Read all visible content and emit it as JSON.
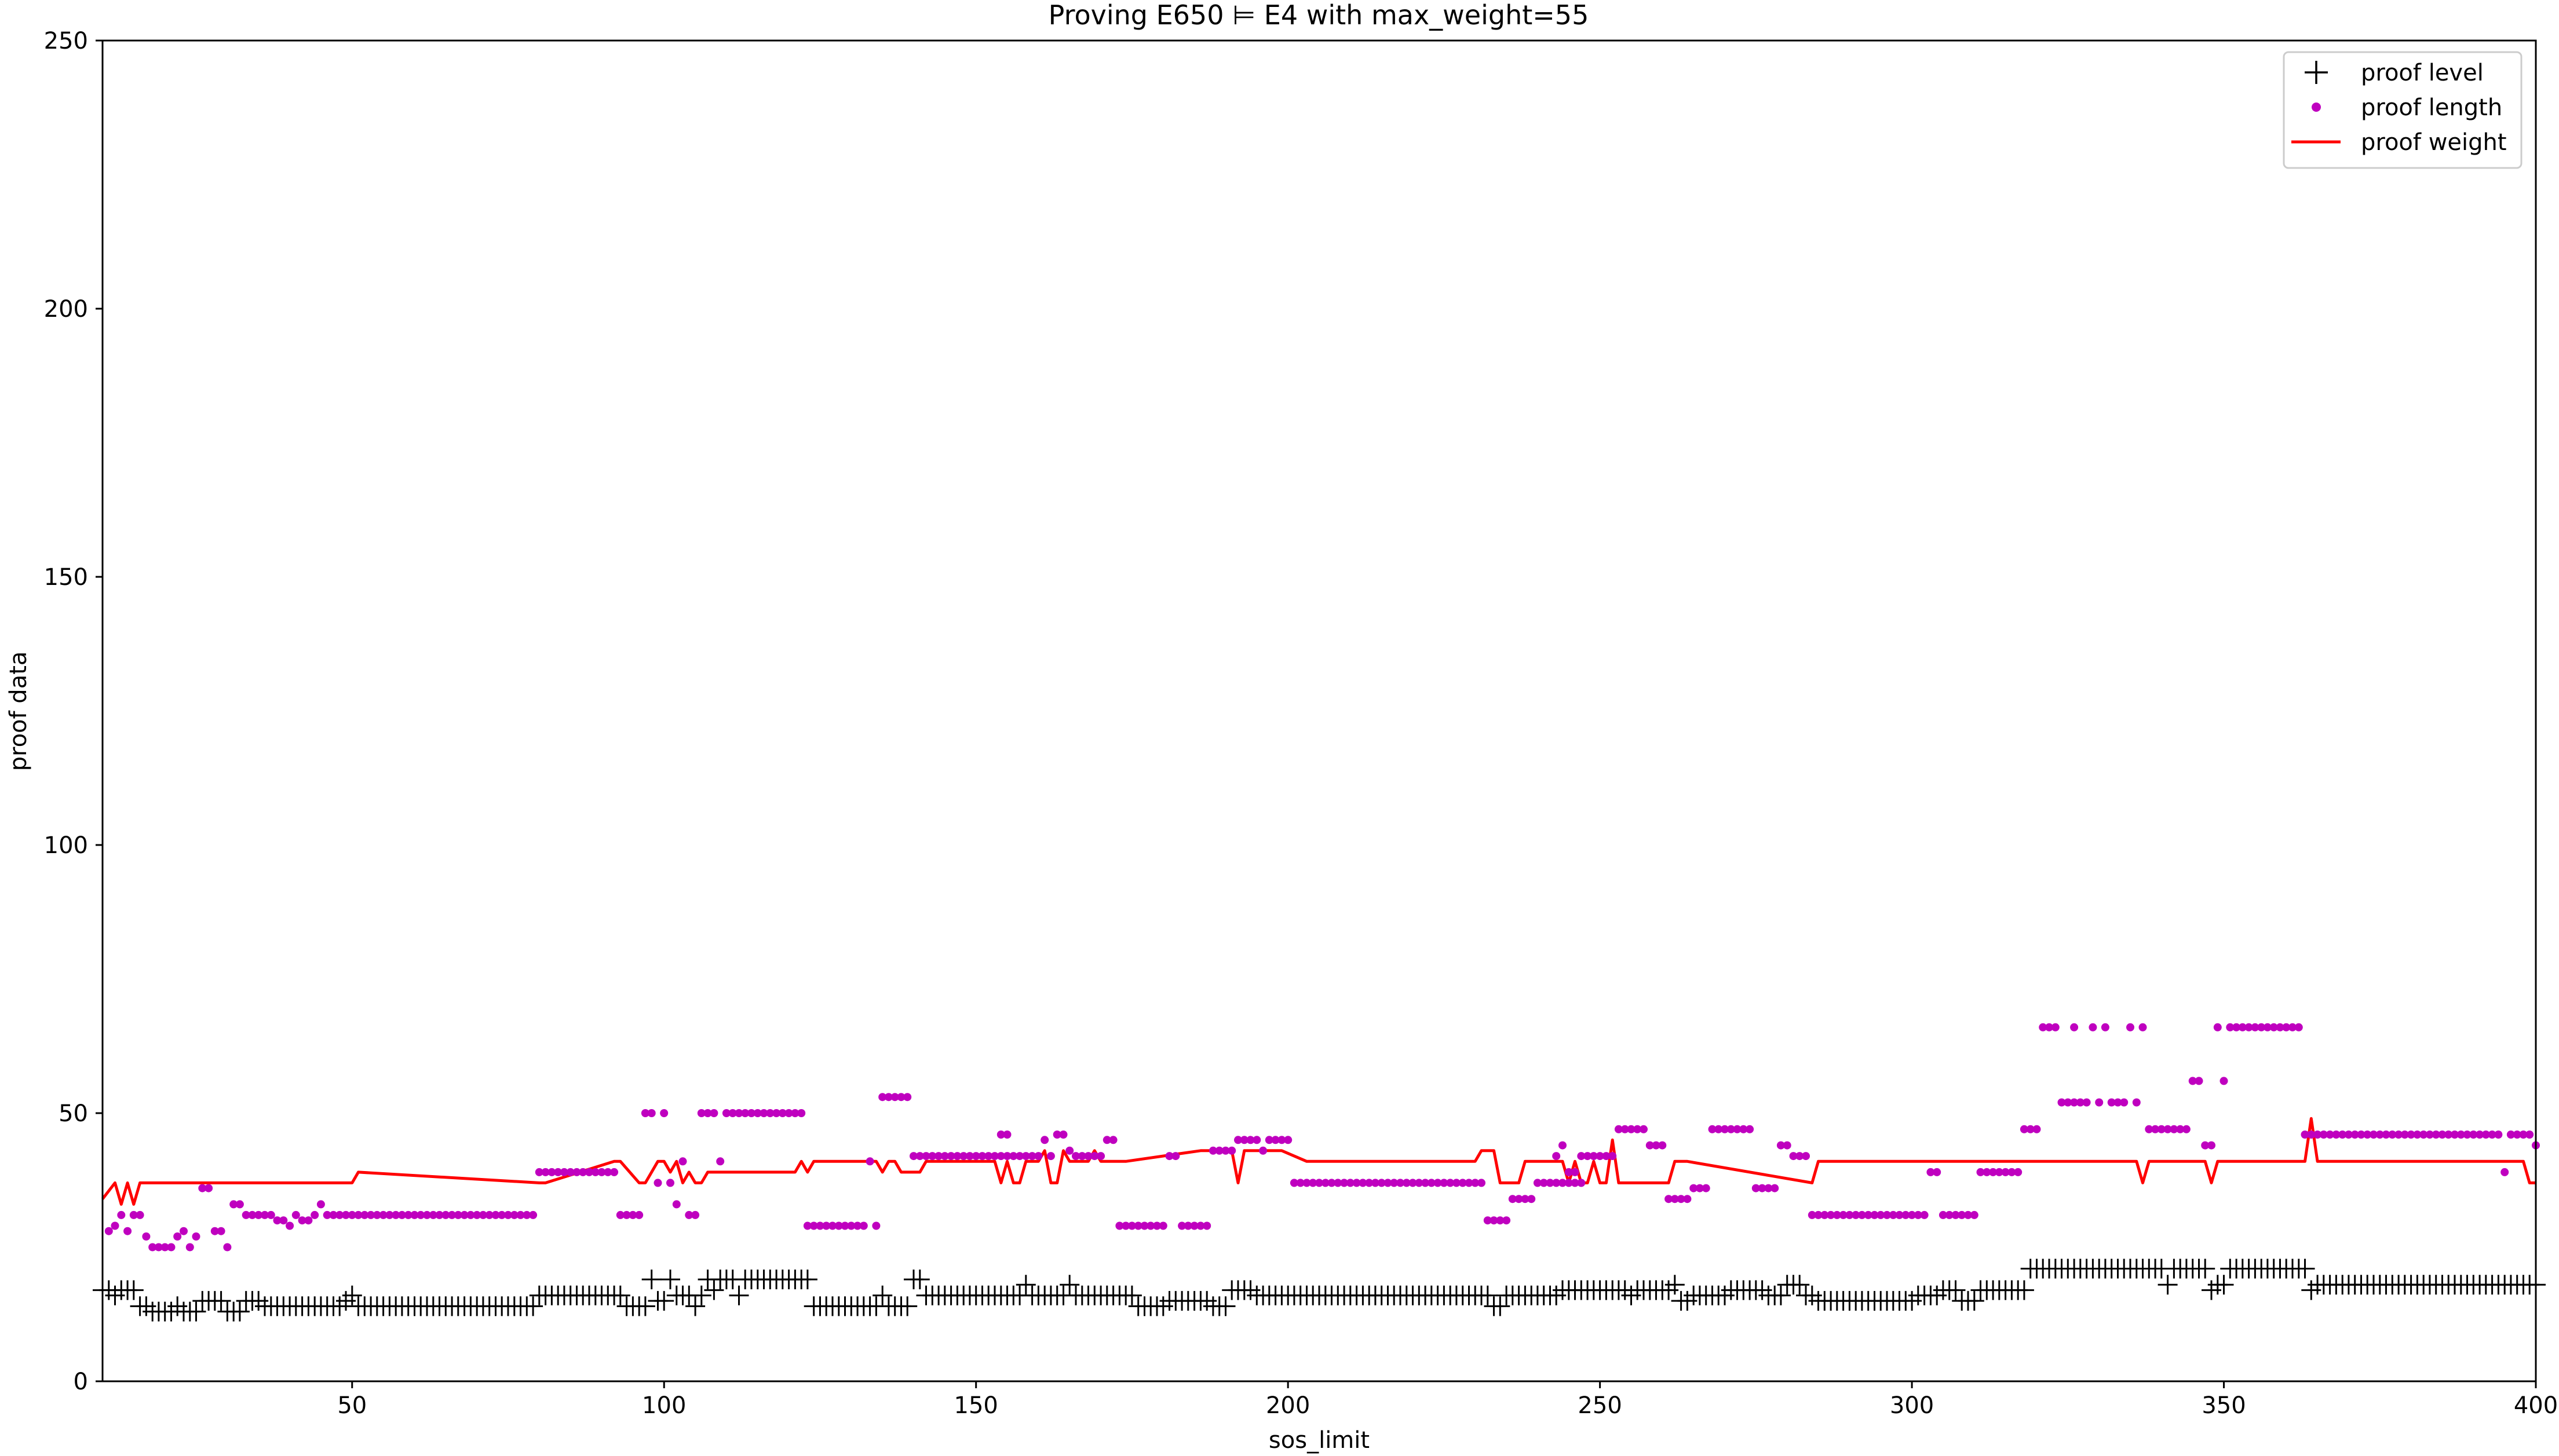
{
  "chart_data": {
    "type": "scatter",
    "title": "Proving E650 ⊨ E4 with max_weight=55",
    "xlabel": "sos_limit",
    "ylabel": "proof data",
    "xlim": [
      10,
      400
    ],
    "ylim": [
      0,
      250
    ],
    "x_ticks": [
      50,
      100,
      150,
      200,
      250,
      300,
      350,
      400
    ],
    "y_ticks": [
      0,
      50,
      100,
      150,
      200,
      250
    ],
    "grid": false,
    "legend": {
      "placement": "top-right",
      "entries": [
        "proof level",
        "proof length",
        "proof weight"
      ]
    },
    "colors": {
      "proof_level": "#000000",
      "proof_length": "#bf00bf",
      "proof_weight": "#ff0000"
    },
    "series": [
      {
        "name": "proof level",
        "marker": "plus",
        "segments": [
          [
            10,
            11,
            17
          ],
          [
            12,
            12,
            16
          ],
          [
            13,
            15,
            17
          ],
          [
            16,
            17,
            14
          ],
          [
            18,
            21,
            13
          ],
          [
            22,
            22,
            14
          ],
          [
            23,
            25,
            13
          ],
          [
            26,
            29,
            15
          ],
          [
            30,
            32,
            13
          ],
          [
            33,
            35,
            15
          ],
          [
            36,
            48,
            14
          ],
          [
            49,
            49,
            15
          ],
          [
            50,
            50,
            16
          ],
          [
            51,
            79,
            14
          ],
          [
            80,
            93,
            16
          ],
          [
            94,
            97,
            14
          ],
          [
            98,
            98,
            19
          ],
          [
            99,
            100,
            15
          ],
          [
            101,
            101,
            19
          ],
          [
            102,
            104,
            16
          ],
          [
            105,
            105,
            14
          ],
          [
            106,
            106,
            16
          ],
          [
            107,
            107,
            19
          ],
          [
            108,
            108,
            17
          ],
          [
            109,
            111,
            19
          ],
          [
            112,
            112,
            16
          ],
          [
            113,
            123,
            19
          ],
          [
            124,
            134,
            14
          ],
          [
            135,
            135,
            16
          ],
          [
            136,
            139,
            14
          ],
          [
            140,
            141,
            19
          ],
          [
            142,
            157,
            16
          ],
          [
            158,
            158,
            18
          ],
          [
            159,
            164,
            16
          ],
          [
            165,
            165,
            18
          ],
          [
            166,
            175,
            16
          ],
          [
            176,
            180,
            14
          ],
          [
            181,
            187,
            15
          ],
          [
            188,
            190,
            14
          ],
          [
            191,
            194,
            17
          ],
          [
            195,
            232,
            16
          ],
          [
            233,
            234,
            14
          ],
          [
            235,
            243,
            16
          ],
          [
            244,
            254,
            17
          ],
          [
            255,
            255,
            16
          ],
          [
            256,
            261,
            17
          ],
          [
            262,
            262,
            18
          ],
          [
            263,
            264,
            15
          ],
          [
            265,
            270,
            16
          ],
          [
            271,
            276,
            17
          ],
          [
            277,
            279,
            16
          ],
          [
            280,
            282,
            18
          ],
          [
            283,
            284,
            16
          ],
          [
            285,
            300,
            15
          ],
          [
            301,
            304,
            16
          ],
          [
            305,
            307,
            17
          ],
          [
            308,
            310,
            15
          ],
          [
            311,
            318,
            17
          ],
          [
            319,
            340,
            21
          ],
          [
            341,
            341,
            18
          ],
          [
            342,
            347,
            21
          ],
          [
            348,
            348,
            17
          ],
          [
            349,
            350,
            18
          ],
          [
            351,
            363,
            21
          ],
          [
            364,
            364,
            17
          ],
          [
            365,
            400,
            18
          ]
        ]
      },
      {
        "name": "proof length",
        "marker": "dot",
        "segments": [
          [
            11,
            11,
            28
          ],
          [
            12,
            12,
            29
          ],
          [
            13,
            13,
            31
          ],
          [
            14,
            14,
            28
          ],
          [
            15,
            16,
            31
          ],
          [
            17,
            17,
            27
          ],
          [
            18,
            21,
            25
          ],
          [
            22,
            22,
            27
          ],
          [
            23,
            23,
            28
          ],
          [
            24,
            24,
            25
          ],
          [
            25,
            25,
            27
          ],
          [
            26,
            26,
            36
          ],
          [
            27,
            27,
            36
          ],
          [
            28,
            28,
            28
          ],
          [
            29,
            29,
            28
          ],
          [
            30,
            30,
            25
          ],
          [
            31,
            32,
            33
          ],
          [
            33,
            37,
            31
          ],
          [
            38,
            38,
            30
          ],
          [
            39,
            39,
            30
          ],
          [
            40,
            40,
            29
          ],
          [
            41,
            41,
            31
          ],
          [
            42,
            43,
            30
          ],
          [
            44,
            44,
            31
          ],
          [
            45,
            45,
            33
          ],
          [
            46,
            79,
            31
          ],
          [
            80,
            92,
            39
          ],
          [
            93,
            96,
            31
          ],
          [
            97,
            98,
            50
          ],
          [
            99,
            99,
            37
          ],
          [
            100,
            100,
            50
          ],
          [
            101,
            101,
            37
          ],
          [
            102,
            102,
            33
          ],
          [
            103,
            103,
            41
          ],
          [
            104,
            105,
            31
          ],
          [
            106,
            108,
            50
          ],
          [
            109,
            109,
            41
          ],
          [
            110,
            122,
            50
          ],
          [
            123,
            132,
            29
          ],
          [
            133,
            133,
            41
          ],
          [
            134,
            134,
            29
          ],
          [
            135,
            139,
            53
          ],
          [
            140,
            156,
            42
          ],
          [
            154,
            155,
            46
          ],
          [
            157,
            157,
            42
          ],
          [
            158,
            160,
            42
          ],
          [
            161,
            161,
            45
          ],
          [
            162,
            162,
            42
          ],
          [
            163,
            164,
            46
          ],
          [
            165,
            165,
            43
          ],
          [
            166,
            170,
            42
          ],
          [
            171,
            172,
            45
          ],
          [
            173,
            180,
            29
          ],
          [
            181,
            182,
            42
          ],
          [
            183,
            187,
            29
          ],
          [
            188,
            191,
            43
          ],
          [
            192,
            195,
            45
          ],
          [
            196,
            196,
            43
          ],
          [
            197,
            200,
            45
          ],
          [
            201,
            231,
            37
          ],
          [
            232,
            235,
            30
          ],
          [
            236,
            239,
            34
          ],
          [
            240,
            247,
            37
          ],
          [
            243,
            243,
            42
          ],
          [
            244,
            244,
            44
          ],
          [
            245,
            246,
            39
          ],
          [
            247,
            252,
            42
          ],
          [
            253,
            257,
            47
          ],
          [
            258,
            260,
            44
          ],
          [
            261,
            264,
            34
          ],
          [
            265,
            267,
            36
          ],
          [
            268,
            274,
            47
          ],
          [
            275,
            275,
            36
          ],
          [
            276,
            278,
            36
          ],
          [
            279,
            280,
            44
          ],
          [
            281,
            283,
            42
          ],
          [
            284,
            302,
            31
          ],
          [
            303,
            304,
            39
          ],
          [
            305,
            310,
            31
          ],
          [
            311,
            317,
            39
          ],
          [
            318,
            320,
            47
          ],
          [
            321,
            323,
            66
          ],
          [
            324,
            328,
            52
          ],
          [
            326,
            326,
            66
          ],
          [
            329,
            329,
            66
          ],
          [
            330,
            330,
            52
          ],
          [
            331,
            331,
            66
          ],
          [
            332,
            334,
            52
          ],
          [
            335,
            335,
            66
          ],
          [
            336,
            336,
            52
          ],
          [
            337,
            337,
            66
          ],
          [
            338,
            344,
            47
          ],
          [
            345,
            346,
            56
          ],
          [
            347,
            348,
            44
          ],
          [
            349,
            349,
            66
          ],
          [
            350,
            350,
            56
          ],
          [
            351,
            362,
            66
          ],
          [
            363,
            394,
            46
          ],
          [
            395,
            395,
            39
          ],
          [
            396,
            399,
            46
          ],
          [
            400,
            400,
            44
          ]
        ]
      },
      {
        "name": "proof weight",
        "marker": "line",
        "x": [
          10,
          12,
          13,
          14,
          15,
          16,
          17,
          50,
          51,
          80,
          81,
          92,
          93,
          96,
          97,
          98,
          99,
          100,
          101,
          102,
          103,
          104,
          105,
          106,
          107,
          121,
          122,
          123,
          124,
          134,
          135,
          136,
          137,
          138,
          141,
          142,
          153,
          154,
          155,
          156,
          157,
          158,
          159,
          160,
          161,
          162,
          163,
          164,
          165,
          166,
          167,
          168,
          169,
          170,
          171,
          172,
          173,
          174,
          186,
          187,
          191,
          192,
          193,
          197,
          198,
          199,
          203,
          204,
          230,
          231,
          233,
          234,
          237,
          238,
          244,
          245,
          246,
          247,
          248,
          249,
          250,
          251,
          252,
          253,
          261,
          262,
          263,
          264,
          284,
          285,
          336,
          337,
          338,
          347,
          348,
          349,
          350,
          363,
          364,
          365,
          398,
          399,
          400
        ],
        "y": [
          34,
          37,
          33,
          37,
          33,
          37,
          37,
          37,
          39,
          37,
          37,
          41,
          41,
          37,
          37,
          39,
          41,
          41,
          39,
          41,
          37,
          39,
          37,
          37,
          39,
          39,
          41,
          39,
          41,
          41,
          39,
          41,
          41,
          39,
          39,
          41,
          41,
          37,
          41,
          37,
          37,
          41,
          41,
          41,
          43,
          37,
          37,
          43,
          41,
          41,
          41,
          41,
          43,
          41,
          41,
          41,
          41,
          41,
          43,
          43,
          43,
          37,
          43,
          43,
          43,
          43,
          41,
          41,
          41,
          43,
          43,
          37,
          37,
          41,
          41,
          37,
          41,
          37,
          37,
          41,
          37,
          37,
          45,
          37,
          37,
          41,
          41,
          41,
          37,
          41,
          41,
          37,
          41,
          41,
          37,
          41,
          41,
          41,
          49,
          41,
          41,
          37,
          37
        ]
      }
    ]
  }
}
